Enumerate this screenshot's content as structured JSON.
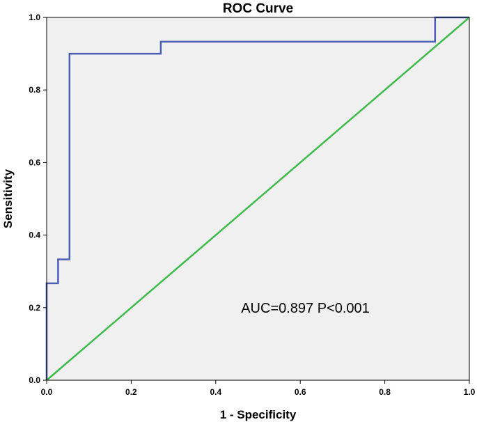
{
  "chart_data": {
    "type": "line",
    "title": "ROC Curve",
    "xlabel": "1 - Specificity",
    "ylabel": "Sensitivity",
    "xlim": [
      0.0,
      1.0
    ],
    "ylim": [
      0.0,
      1.0
    ],
    "x_ticks": [
      "0.0",
      "0.2",
      "0.4",
      "0.6",
      "0.8",
      "1.0"
    ],
    "y_ticks": [
      "0.0",
      "0.2",
      "0.4",
      "0.6",
      "0.8",
      "1.0"
    ],
    "grid": false,
    "background_color": "#f0f0f0",
    "series": [
      {
        "color": "#4b5fb4",
        "points": [
          [
            0.0,
            0.0
          ],
          [
            0.0,
            0.267
          ],
          [
            0.027,
            0.267
          ],
          [
            0.027,
            0.333
          ],
          [
            0.054,
            0.333
          ],
          [
            0.054,
            0.9
          ],
          [
            0.27,
            0.9
          ],
          [
            0.27,
            0.933
          ],
          [
            0.919,
            0.933
          ],
          [
            0.919,
            1.0
          ],
          [
            1.0,
            1.0
          ]
        ]
      },
      {
        "color": "#3cba4a",
        "points": [
          [
            0.0,
            0.0
          ],
          [
            1.0,
            1.0
          ]
        ]
      }
    ],
    "annotation": {
      "text": "AUC=0.897  P<0.001",
      "x": 0.46,
      "y": 0.2
    }
  }
}
